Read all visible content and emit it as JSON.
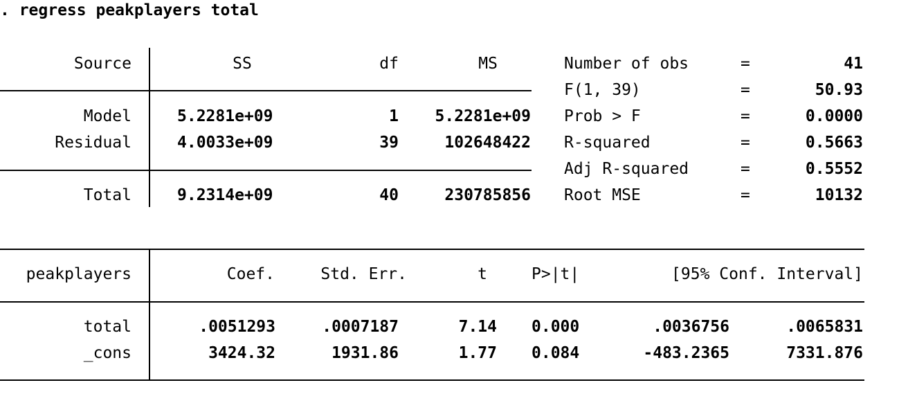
{
  "command": ". regress peakplayers total",
  "anova": {
    "headers": {
      "source": "Source",
      "ss": "SS",
      "df": "df",
      "ms": "MS"
    },
    "rows": [
      {
        "source": "Model",
        "ss": "5.2281e+09",
        "df": "1",
        "ms": "5.2281e+09"
      },
      {
        "source": "Residual",
        "ss": "4.0033e+09",
        "df": "39",
        "ms": "102648422"
      }
    ],
    "total": {
      "source": "Total",
      "ss": "9.2314e+09",
      "df": "40",
      "ms": "230785856"
    }
  },
  "stats": [
    {
      "label": "Number of obs",
      "eq": "=",
      "value": "41"
    },
    {
      "label": "F(1, 39)",
      "eq": "=",
      "value": "50.93"
    },
    {
      "label": "Prob > F",
      "eq": "=",
      "value": "0.0000"
    },
    {
      "label": "R-squared",
      "eq": "=",
      "value": "0.5663"
    },
    {
      "label": "Adj R-squared",
      "eq": "=",
      "value": "0.5552"
    },
    {
      "label": "Root MSE",
      "eq": "=",
      "value": "10132"
    }
  ],
  "coef_table": {
    "headers": {
      "var": "peakplayers",
      "coef": "Coef.",
      "se": "Std. Err.",
      "t": "t",
      "p": "P>|t|",
      "ci": "[95% Conf. Interval]"
    },
    "rows": [
      {
        "var": "total",
        "coef": ".0051293",
        "se": ".0007187",
        "t": "7.14",
        "p": "0.000",
        "ci_low": ".0036756",
        "ci_high": ".0065831"
      },
      {
        "var": "_cons",
        "coef": "3424.32",
        "se": "1931.86",
        "t": "1.77",
        "p": "0.084",
        "ci_low": "-483.2365",
        "ci_high": "7331.876"
      }
    ]
  }
}
